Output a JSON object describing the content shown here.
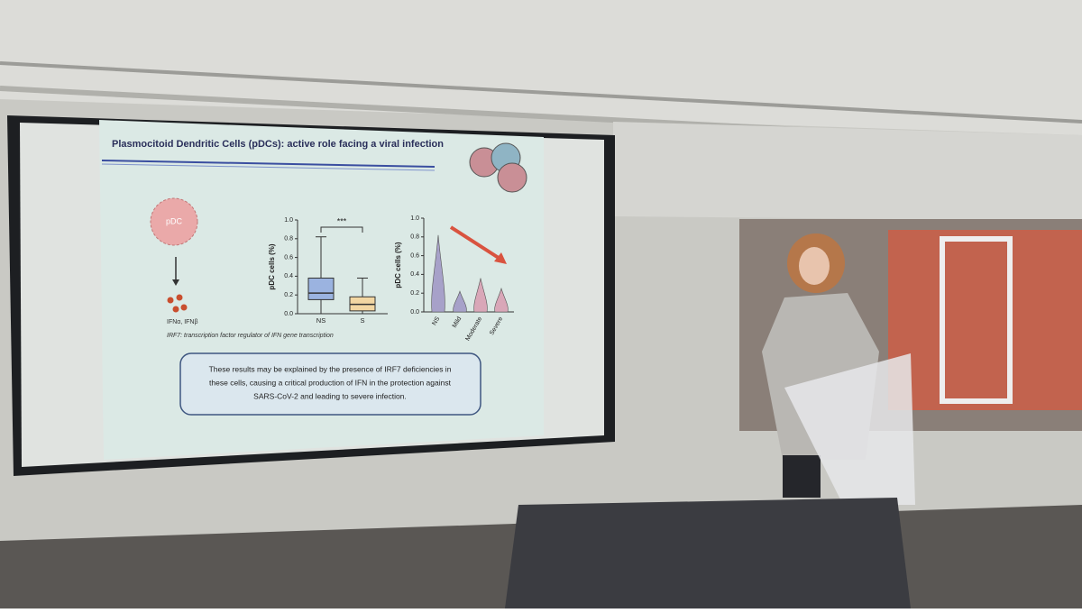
{
  "slide": {
    "title": "Plasmocitoid Dendritic Cells (pDCs): active role facing a viral infection",
    "cell_label": "pDC",
    "cytokines": "IFNα, IFNβ",
    "caption": "IRF7: transcription factor regulator of IFN gene transcription",
    "conclusion_lines": [
      "These results may be explained by the presence of IRF7 deficiencies in",
      "these cells, causing a critical production of IFN in the protection against",
      "SARS-CoV-2 and leading to severe infection."
    ],
    "box_chart": {
      "type": "box",
      "ylabel": "pDC cells (%)",
      "significance": "***",
      "categories": [
        "NS",
        "S"
      ],
      "min": [
        0.0,
        0.0
      ],
      "q1": [
        0.15,
        0.03
      ],
      "median": [
        0.22,
        0.1
      ],
      "q3": [
        0.38,
        0.18
      ],
      "max": [
        0.82,
        0.38
      ],
      "colors": [
        "#9bb3e0",
        "#f2d6a2"
      ],
      "ylim": [
        0,
        1
      ],
      "yticks": [
        {
          "value": 0,
          "label": "0.0"
        },
        {
          "value": 0.2,
          "label": "0.2"
        },
        {
          "value": 0.4,
          "label": "0.4"
        },
        {
          "value": 0.6,
          "label": "0.6"
        },
        {
          "value": 0.8,
          "label": "0.8"
        },
        {
          "value": 1,
          "label": "1.0"
        }
      ]
    },
    "violin_chart": {
      "type": "violin",
      "ylabel": "pDC cells (%)",
      "categories": [
        "NS",
        "Mild",
        "Moderate",
        "Severe"
      ],
      "max": [
        0.82,
        0.22,
        0.36,
        0.25
      ],
      "colors": [
        "#a7a1c9",
        "#a7a1c9",
        "#d9a7b8",
        "#d9a7b8"
      ],
      "ylim": [
        0,
        1
      ],
      "yticks": [
        {
          "value": 0,
          "label": "0.0"
        },
        {
          "value": 0.2,
          "label": "0.2"
        },
        {
          "value": 0.4,
          "label": "0.4"
        },
        {
          "value": 0.6,
          "label": "0.6"
        },
        {
          "value": 0.8,
          "label": "0.8"
        },
        {
          "value": 1,
          "label": "1.0"
        }
      ]
    }
  }
}
